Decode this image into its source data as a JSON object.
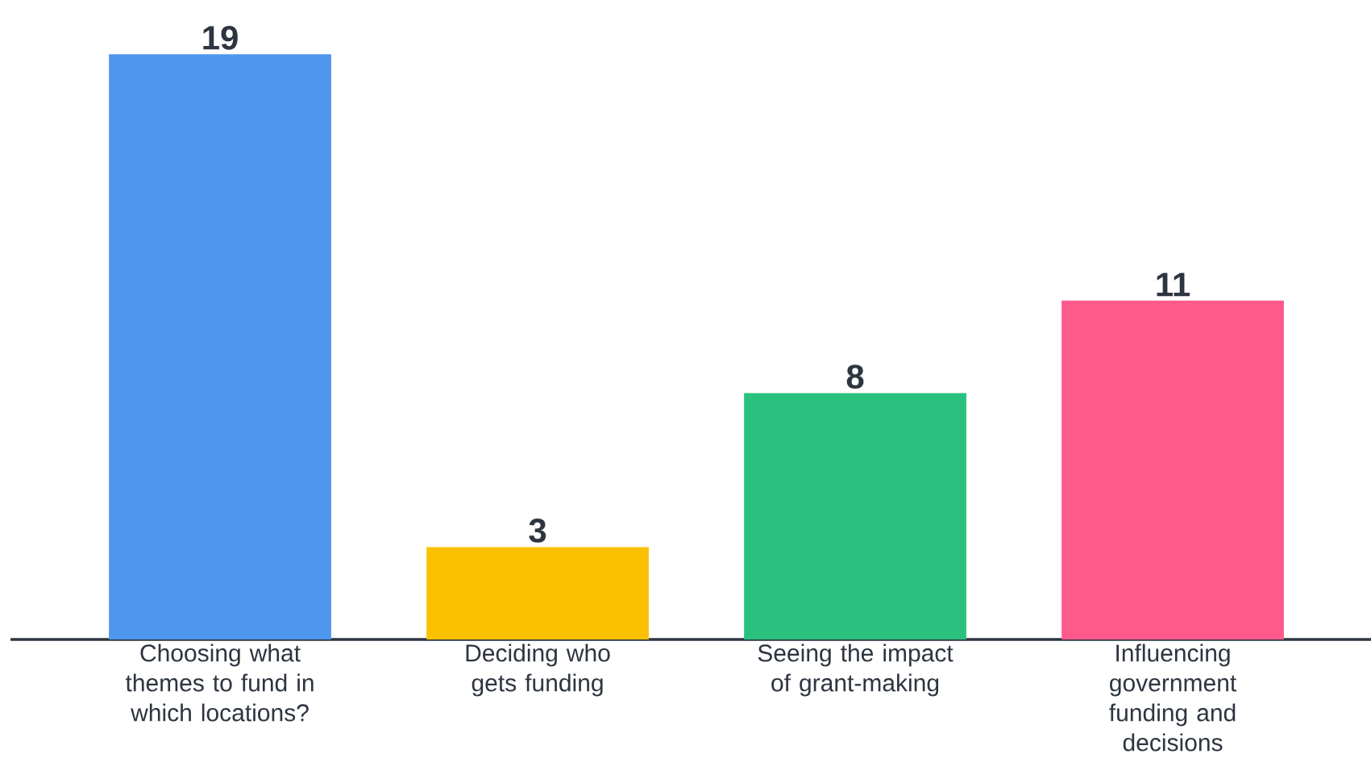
{
  "chart_data": {
    "type": "bar",
    "categories": [
      "Choosing what themes to fund in which locations?",
      "Deciding who gets funding",
      "Seeing the impact of grant-making",
      "Influencing government funding and decisions"
    ],
    "values": [
      19,
      3,
      8,
      11
    ],
    "colors": [
      "#4f97ee",
      "#fbc100",
      "#2ac17e",
      "#ff5a8c"
    ],
    "data_labels": true
  }
}
